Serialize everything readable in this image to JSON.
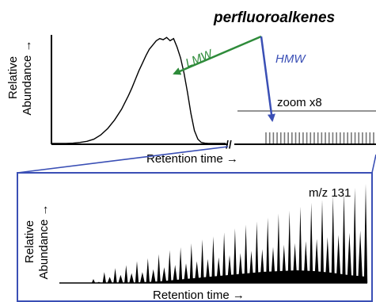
{
  "title": "perfluoroalkenes",
  "colors": {
    "lmw": "#2e8b3a",
    "hmw": "#3a4fb5",
    "frame": "#3a4fb5",
    "trace": "#000000",
    "zoom_line": "#555555"
  },
  "annotations": {
    "lmw": "LMW",
    "hmw": "HMW",
    "zoom": "zoom x8",
    "mz": "m/z 131",
    "axis_break": "//"
  },
  "chart_data": [
    {
      "type": "line",
      "title": "perfluoroalkenes",
      "xlabel": "Retention time →",
      "ylabel": [
        "Relative",
        "Abundance →"
      ],
      "x": [
        0,
        4,
        8,
        12,
        16,
        20,
        24,
        28,
        32,
        36,
        40,
        44,
        46,
        48,
        50,
        52,
        54,
        56,
        58,
        60,
        62,
        64,
        66,
        68,
        70,
        72,
        74,
        76,
        78,
        80,
        82,
        84,
        86,
        88,
        90,
        94,
        100
      ],
      "y": [
        0,
        0,
        0,
        0.3,
        1,
        2,
        4,
        8,
        14,
        22,
        32,
        45,
        52,
        60,
        68,
        75,
        82,
        88,
        92,
        96,
        98,
        97,
        99,
        96,
        98,
        90,
        80,
        66,
        48,
        28,
        12,
        4,
        1,
        0.3,
        0,
        0,
        0
      ],
      "axis_break_after_x": 100,
      "zoomed_peak_count": 30,
      "zoom_factor": 8,
      "grid": false
    },
    {
      "type": "bar",
      "title": "m/z 131",
      "xlabel": "Retention time →",
      "ylabel": [
        "Relative",
        "Abundance →"
      ],
      "peaks": [
        4,
        11,
        15,
        18,
        22,
        25,
        29,
        33,
        36,
        40,
        44,
        47,
        51,
        55,
        59,
        62,
        66,
        70,
        73,
        77,
        81,
        84,
        88,
        92,
        96,
        100
      ],
      "small_peaks": [
        2,
        11,
        15,
        18,
        20,
        25,
        29,
        33,
        36,
        40,
        44,
        47,
        51,
        55,
        59,
        62,
        66,
        70,
        73,
        77,
        81,
        84,
        88,
        92,
        96
      ],
      "baseline": [
        0,
        1,
        2,
        4,
        6,
        8,
        10,
        12,
        14,
        15,
        16,
        15,
        13,
        10,
        8
      ],
      "grid": false
    }
  ]
}
